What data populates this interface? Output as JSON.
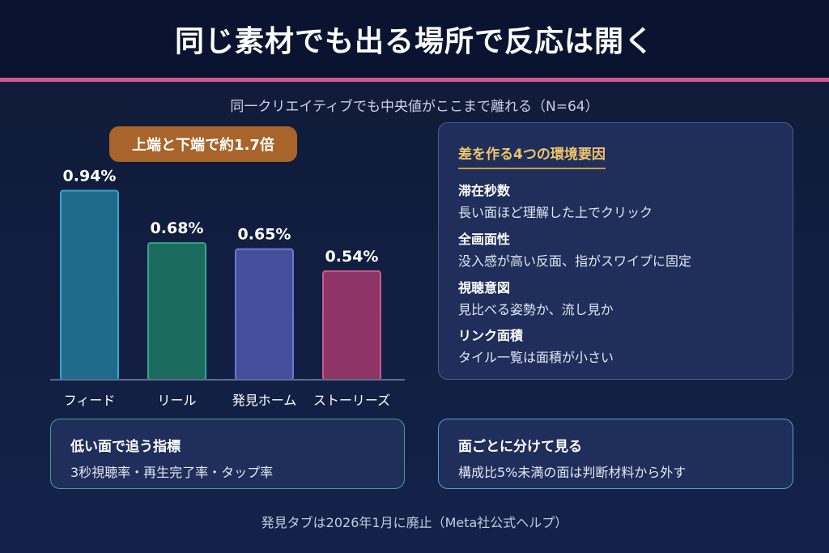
{
  "title": "同じ素材でも出る場所で反応は開く",
  "subtitle": "同一クリエイティブでも中央値がここまで離れる（N=64）",
  "ratio_badge": "上端と下端で約1.7倍",
  "chart_data": {
    "type": "bar",
    "categories": [
      "フィード",
      "リール",
      "発見ホーム",
      "ストーリーズ"
    ],
    "values": [
      0.94,
      0.68,
      0.65,
      0.54
    ],
    "value_labels": [
      "0.94%",
      "0.68%",
      "0.65%",
      "0.54%"
    ],
    "ylim": [
      0,
      1.0
    ],
    "colors": [
      "#1e6b8c",
      "#1a6b5e",
      "#444f9c",
      "#8e3566"
    ],
    "borders": [
      "#3aa6cf",
      "#37a68c",
      "#6a78d6",
      "#c85a92"
    ],
    "grid": false
  },
  "factors": {
    "title": "差を作る4つの環境要因",
    "items": [
      {
        "name": "滞在秒数",
        "desc": "長い面ほど理解した上でクリック"
      },
      {
        "name": "全画面性",
        "desc": "没入感が高い反面、指がスワイプに固定"
      },
      {
        "name": "視聴意図",
        "desc": "見比べる姿勢か、流し見か"
      },
      {
        "name": "リンク面積",
        "desc": "タイル一覧は面積が小さい"
      }
    ]
  },
  "metrics_card": {
    "heading": "低い面で追う指標",
    "body": "3秒視聴率・再生完了率・タップ率"
  },
  "split_card": {
    "heading": "面ごとに分けて見る",
    "body": "構成比5%未満の面は判断材料から外す"
  },
  "footer": "発見タブは2026年1月に廃止（Meta社公式ヘルプ）",
  "colors": {
    "accent_line": "#d6578a",
    "badge": "#a8642a",
    "factor_title": "#f0c46a"
  }
}
